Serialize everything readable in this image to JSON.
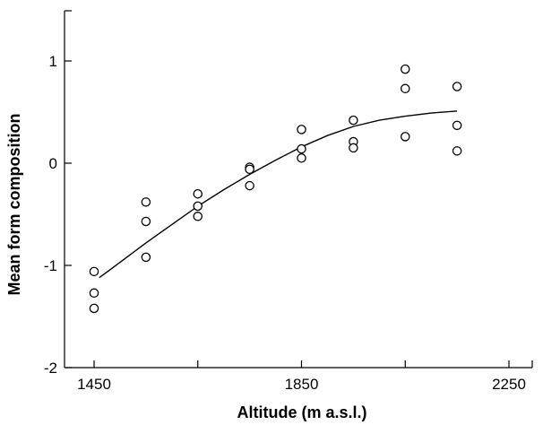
{
  "chart_data": {
    "type": "scatter",
    "title": "",
    "xlabel": "Altitude (m a.s.l.)",
    "ylabel": "Mean form composition",
    "xlim": [
      1450,
      2250
    ],
    "ylim": [
      -2,
      1.5
    ],
    "x_ticks": [
      1450,
      1650,
      1850,
      2050,
      2250
    ],
    "x_tick_labels": [
      "1450",
      "",
      "1850",
      "",
      "2250"
    ],
    "y_ticks": [
      -2,
      -1,
      0,
      1
    ],
    "y_tick_labels": [
      "-2",
      "-1",
      "0",
      "1"
    ],
    "grid": false,
    "legend": "none",
    "series": [
      {
        "kind": "scatter",
        "points": [
          {
            "x": 1450,
            "y": -1.06
          },
          {
            "x": 1450,
            "y": -1.27
          },
          {
            "x": 1450,
            "y": -1.42
          },
          {
            "x": 1550,
            "y": -0.38
          },
          {
            "x": 1550,
            "y": -0.57
          },
          {
            "x": 1550,
            "y": -0.92
          },
          {
            "x": 1650,
            "y": -0.3
          },
          {
            "x": 1650,
            "y": -0.42
          },
          {
            "x": 1650,
            "y": -0.52
          },
          {
            "x": 1750,
            "y": -0.04
          },
          {
            "x": 1750,
            "y": -0.06
          },
          {
            "x": 1750,
            "y": -0.22
          },
          {
            "x": 1850,
            "y": 0.33
          },
          {
            "x": 1850,
            "y": 0.14
          },
          {
            "x": 1850,
            "y": 0.05
          },
          {
            "x": 1950,
            "y": 0.42
          },
          {
            "x": 1950,
            "y": 0.21
          },
          {
            "x": 1950,
            "y": 0.15
          },
          {
            "x": 2050,
            "y": 0.92
          },
          {
            "x": 2050,
            "y": 0.73
          },
          {
            "x": 2050,
            "y": 0.26
          },
          {
            "x": 2150,
            "y": 0.75
          },
          {
            "x": 2150,
            "y": 0.37
          },
          {
            "x": 2150,
            "y": 0.12
          }
        ]
      },
      {
        "kind": "line",
        "points": [
          {
            "x": 1460,
            "y": -1.12
          },
          {
            "x": 1500,
            "y": -0.97
          },
          {
            "x": 1550,
            "y": -0.78
          },
          {
            "x": 1600,
            "y": -0.6
          },
          {
            "x": 1650,
            "y": -0.42
          },
          {
            "x": 1700,
            "y": -0.26
          },
          {
            "x": 1750,
            "y": -0.11
          },
          {
            "x": 1800,
            "y": 0.03
          },
          {
            "x": 1850,
            "y": 0.16
          },
          {
            "x": 1900,
            "y": 0.27
          },
          {
            "x": 1950,
            "y": 0.36
          },
          {
            "x": 2000,
            "y": 0.42
          },
          {
            "x": 2050,
            "y": 0.46
          },
          {
            "x": 2100,
            "y": 0.49
          },
          {
            "x": 2150,
            "y": 0.51
          }
        ]
      }
    ]
  }
}
